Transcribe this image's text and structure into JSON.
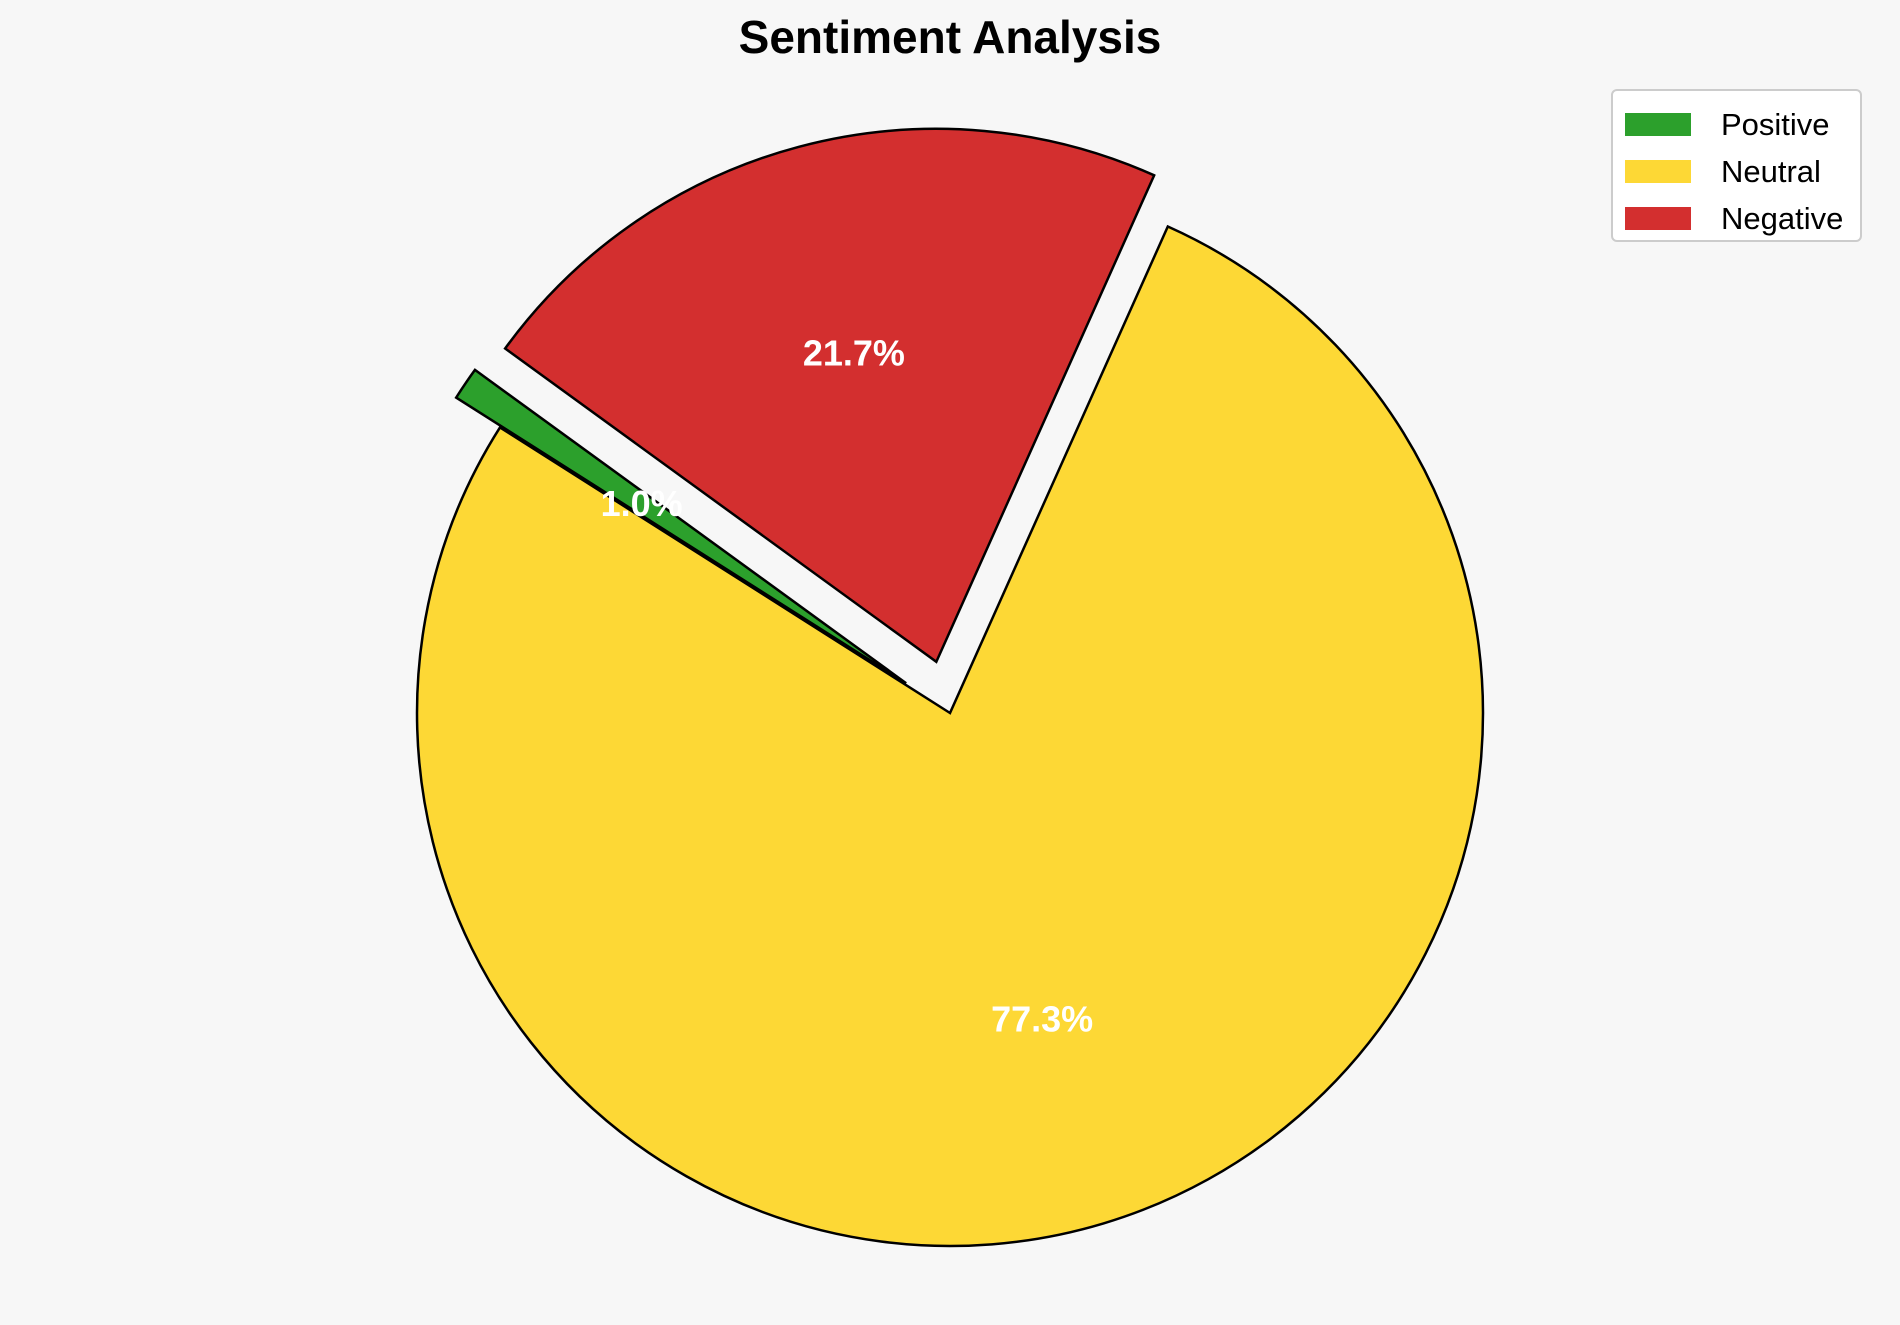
{
  "chart_data": {
    "type": "pie",
    "title": "Sentiment Analysis",
    "categories": [
      "Positive",
      "Neutral",
      "Negative"
    ],
    "values": [
      1.0,
      77.3,
      21.7
    ],
    "labels": [
      "1.0%",
      "77.3%",
      "21.7%"
    ],
    "colors": [
      "#2ca02c",
      "#fdd835",
      "#d32f2f"
    ],
    "exploded": [
      true,
      false,
      true
    ],
    "legend_position": "top-right",
    "edge_color": "#000000",
    "label_color": "#ffffff"
  },
  "background": "#f7f7f7"
}
